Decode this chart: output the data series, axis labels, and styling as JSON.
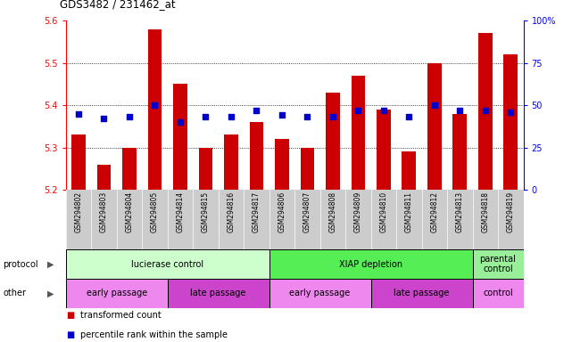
{
  "title": "GDS3482 / 231462_at",
  "samples": [
    "GSM294802",
    "GSM294803",
    "GSM294804",
    "GSM294805",
    "GSM294814",
    "GSM294815",
    "GSM294816",
    "GSM294817",
    "GSM294806",
    "GSM294807",
    "GSM294808",
    "GSM294809",
    "GSM294810",
    "GSM294811",
    "GSM294812",
    "GSM294813",
    "GSM294818",
    "GSM294819"
  ],
  "transformed_count": [
    5.33,
    5.26,
    5.3,
    5.58,
    5.45,
    5.3,
    5.33,
    5.36,
    5.32,
    5.3,
    5.43,
    5.47,
    5.39,
    5.29,
    5.5,
    5.38,
    5.57,
    5.52
  ],
  "percentile_rank": [
    45,
    42,
    43,
    50,
    40,
    43,
    43,
    47,
    44,
    43,
    43,
    47,
    47,
    43,
    50,
    47,
    47,
    46
  ],
  "ylim": [
    5.2,
    5.6
  ],
  "y2lim": [
    0,
    100
  ],
  "yticks": [
    5.2,
    5.3,
    5.4,
    5.5,
    5.6
  ],
  "y2ticks": [
    0,
    25,
    50,
    75,
    100
  ],
  "bar_color": "#cc0000",
  "dot_color": "#0000cc",
  "bar_width": 0.55,
  "protocol_groups": [
    {
      "label": "lucierase control",
      "start": 0,
      "end": 7,
      "color": "#ccffcc"
    },
    {
      "label": "XIAP depletion",
      "start": 8,
      "end": 15,
      "color": "#55ee55"
    },
    {
      "label": "parental\ncontrol",
      "start": 16,
      "end": 17,
      "color": "#99ee99"
    }
  ],
  "other_groups": [
    {
      "label": "early passage",
      "start": 0,
      "end": 3,
      "color": "#ee88ee"
    },
    {
      "label": "late passage",
      "start": 4,
      "end": 7,
      "color": "#cc44cc"
    },
    {
      "label": "early passage",
      "start": 8,
      "end": 11,
      "color": "#ee88ee"
    },
    {
      "label": "late passage",
      "start": 12,
      "end": 15,
      "color": "#cc44cc"
    },
    {
      "label": "control",
      "start": 16,
      "end": 17,
      "color": "#ee88ee"
    }
  ],
  "xtick_bg": "#cccccc",
  "plot_bg": "#ffffff",
  "grid_dotted_ticks": [
    5.3,
    5.4,
    5.5
  ],
  "legend_items": [
    {
      "label": "transformed count",
      "color": "#cc0000"
    },
    {
      "label": "percentile rank within the sample",
      "color": "#0000cc"
    }
  ]
}
